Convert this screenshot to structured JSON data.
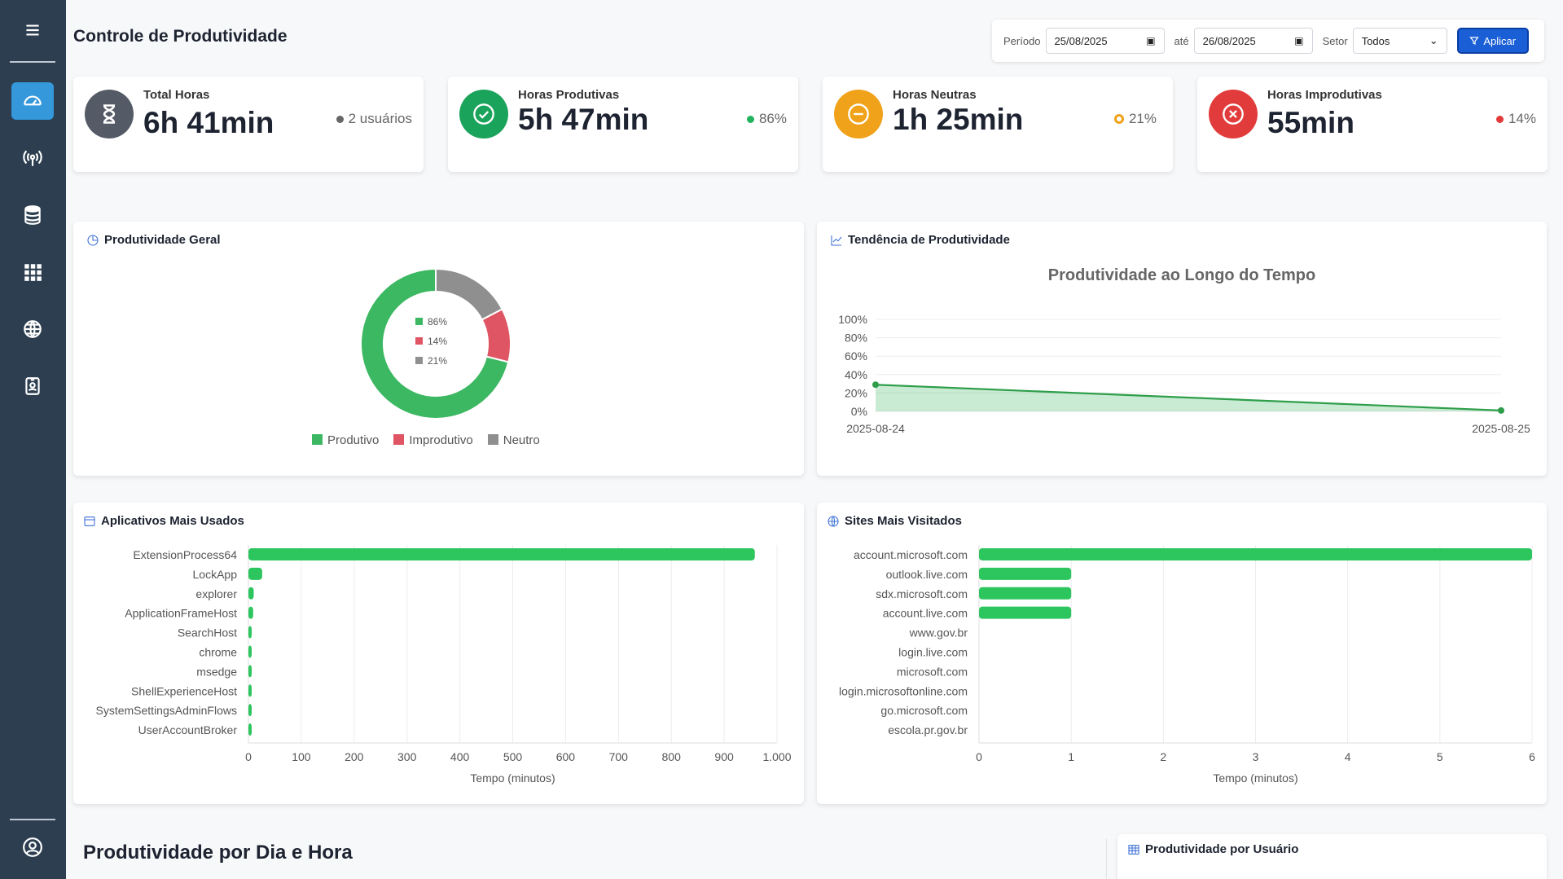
{
  "sidebar": {
    "items": [
      {
        "name": "menu",
        "icon": "hamburger-icon"
      },
      {
        "name": "dashboard",
        "icon": "speedometer-icon",
        "active": true
      },
      {
        "name": "broadcast",
        "icon": "broadcast-icon"
      },
      {
        "name": "database",
        "icon": "database-icon"
      },
      {
        "name": "apps",
        "icon": "grid-icon"
      },
      {
        "name": "web",
        "icon": "globe-icon"
      },
      {
        "name": "badge",
        "icon": "id-badge-icon"
      },
      {
        "name": "user",
        "icon": "user-circle-icon"
      }
    ]
  },
  "header": {
    "title": "Controle de Produtividade",
    "period_label": "Período",
    "date_from": "25/08/2025",
    "until_label": "até",
    "date_to": "26/08/2025",
    "sector_label": "Setor",
    "sector_value": "Todos",
    "apply_label": "Aplicar"
  },
  "stats": [
    {
      "title": "Total Horas",
      "value": "6h 41min",
      "side": "2 usuários",
      "color": "#555b66",
      "dot": "#666666",
      "icon": "hourglass-icon"
    },
    {
      "title": "Horas Produtivas",
      "value": "5h 47min",
      "side": "86%",
      "color": "#1aa35a",
      "dot": "#22b35e",
      "icon": "check-circle-icon"
    },
    {
      "title": "Horas Neutras",
      "value": "1h 25min",
      "side": "21%",
      "color": "#f0a21a",
      "dot": "#f0a21a",
      "icon": "minus-circle-icon"
    },
    {
      "title": "Horas Improdutivas",
      "value": "55min",
      "side": "14%",
      "color": "#e23b3b",
      "dot": "#e23b3b",
      "icon": "x-circle-icon"
    }
  ],
  "panels": {
    "general": "Produtividade Geral",
    "trend": "Tendência de Produtividade",
    "apps": "Aplicativos Mais Usados",
    "sites": "Sites Mais Visitados",
    "by_user": "Produtividade por Usuário",
    "by_day_hour": "Produtividade por Dia e Hora"
  },
  "legend": [
    "Produtivo",
    "Improdutivo",
    "Neutro"
  ],
  "colors": {
    "productive": "#3cb862",
    "unproductive": "#e05563",
    "neutral": "#8f8f8f",
    "line": "#2e9e4a"
  },
  "chart_data": [
    {
      "type": "pie",
      "title": "Produtividade Geral",
      "categories": [
        "Produtivo",
        "Improdutivo",
        "Neutro"
      ],
      "values": [
        86,
        14,
        21
      ],
      "labels": [
        "86%",
        "14%",
        "21%"
      ]
    },
    {
      "type": "area",
      "title": "Produtividade ao Longo do Tempo",
      "x": [
        "2025-08-24",
        "2025-08-25"
      ],
      "values": [
        29,
        1
      ],
      "ylim": [
        0,
        100
      ],
      "yticks": [
        "0%",
        "20%",
        "40%",
        "60%",
        "80%",
        "100%"
      ]
    },
    {
      "type": "bar",
      "title": "Aplicativos Mais Usados",
      "categories": [
        "ExtensionProcess64",
        "LockApp",
        "explorer",
        "ApplicationFrameHost",
        "SearchHost",
        "chrome",
        "msedge",
        "ShellExperienceHost",
        "SystemSettingsAdminFlows",
        "UserAccountBroker"
      ],
      "values": [
        958,
        26,
        10,
        9,
        2,
        1,
        1,
        1,
        1,
        1
      ],
      "xlim": [
        0,
        1000
      ],
      "xticks": [
        "0",
        "100",
        "200",
        "300",
        "400",
        "500",
        "600",
        "700",
        "800",
        "900",
        "1.000"
      ],
      "xlabel": "Tempo (minutos)"
    },
    {
      "type": "bar",
      "title": "Sites Mais Visitados",
      "categories": [
        "account.microsoft.com",
        "outlook.live.com",
        "sdx.microsoft.com",
        "account.live.com",
        "www.gov.br",
        "login.live.com",
        "microsoft.com",
        "login.microsoftonline.com",
        "go.microsoft.com",
        "escola.pr.gov.br"
      ],
      "values": [
        6,
        1,
        1,
        1,
        0,
        0,
        0,
        0,
        0,
        0
      ],
      "xlim": [
        0,
        6
      ],
      "xticks": [
        "0",
        "1",
        "2",
        "3",
        "4",
        "5",
        "6"
      ],
      "xlabel": "Tempo (minutos)"
    }
  ]
}
